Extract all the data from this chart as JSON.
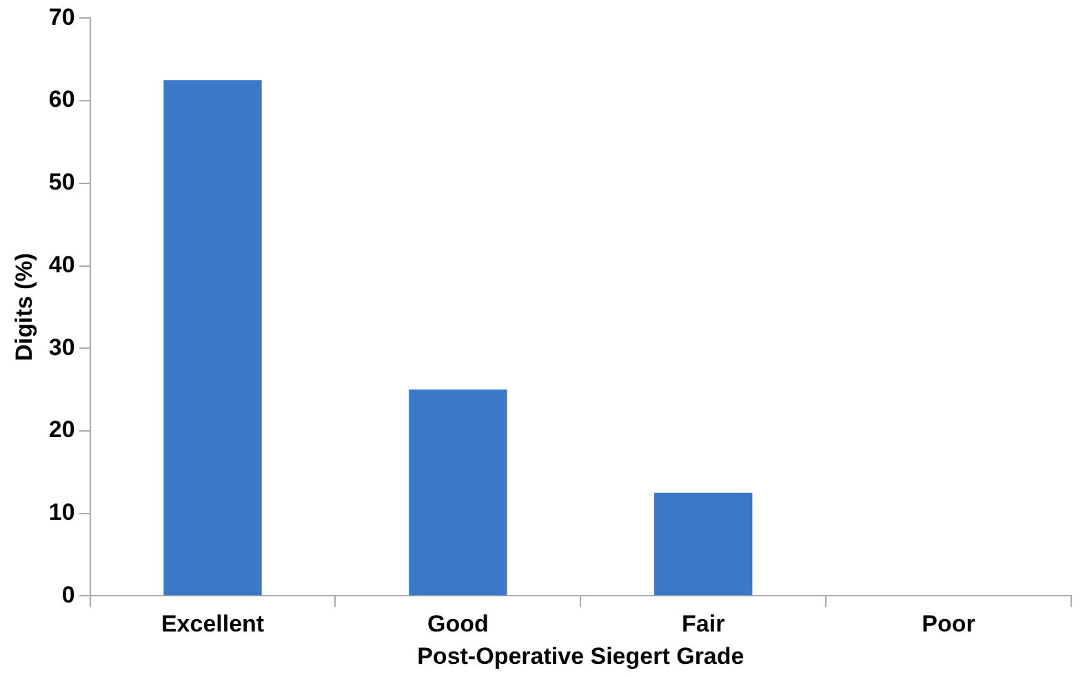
{
  "chart_data": {
    "type": "bar",
    "xlabel": "Post-Operative Siegert Grade",
    "ylabel": "Digits (%)",
    "categories": [
      "Excellent",
      "Good",
      "Fair",
      "Poor"
    ],
    "values": [
      62.5,
      25,
      12.5,
      0
    ],
    "color": "#3a78c8",
    "ylim": [
      0,
      70
    ],
    "yticks": [
      0,
      10,
      20,
      30,
      40,
      50,
      60,
      70
    ],
    "grid": false,
    "legend": false
  }
}
